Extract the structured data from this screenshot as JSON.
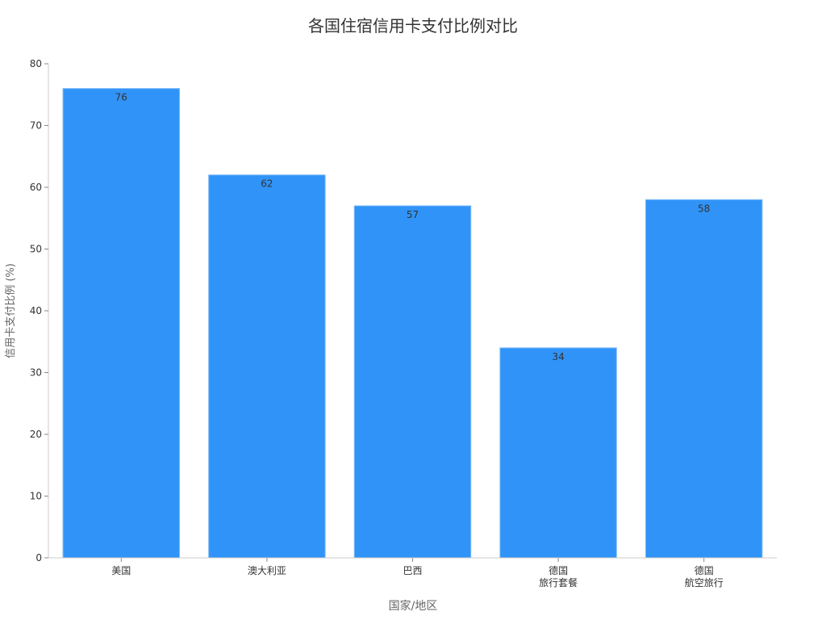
{
  "chart_data": {
    "type": "bar",
    "title": "各国住宿信用卡支付比例对比",
    "xlabel": "国家/地区",
    "ylabel": "信用卡支付比例 (%)",
    "categories": [
      [
        "美国"
      ],
      [
        "澳大利亚"
      ],
      [
        "巴西"
      ],
      [
        "德国",
        "旅行套餐"
      ],
      [
        "德国",
        "航空旅行"
      ]
    ],
    "values": [
      76,
      62,
      57,
      34,
      58
    ],
    "data_labels": [
      "76",
      "62",
      "57",
      "34",
      "58"
    ],
    "ylim": [
      0,
      80
    ],
    "yticks": [
      0,
      10,
      20,
      30,
      40,
      50,
      60,
      70,
      80
    ],
    "ytick_labels": [
      "0",
      "10",
      "20",
      "30",
      "40",
      "50",
      "60",
      "70",
      "80"
    ],
    "grid": false,
    "colors": {
      "bar": "#3093f7",
      "bar_edge": "#7fbcfa",
      "text": "#333333",
      "axis": "#cccccc"
    }
  }
}
